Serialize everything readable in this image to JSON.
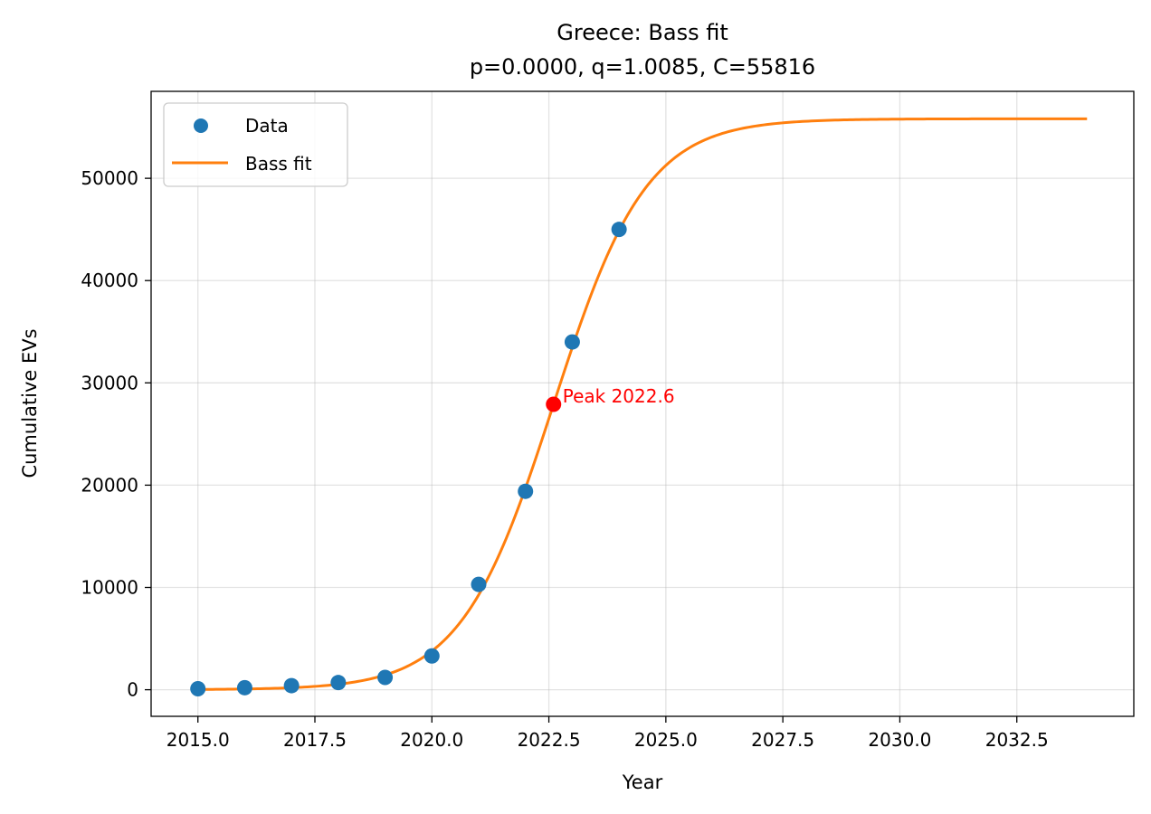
{
  "chart_data": {
    "type": "line",
    "title": "Greece: Bass fit",
    "subtitle": "p=0.0000, q=1.0085, C=55816",
    "xlabel": "Year",
    "ylabel": "Cumulative EVs",
    "xlim": [
      2014.0,
      2035.0
    ],
    "ylim": [
      -2600,
      58500
    ],
    "xticks": [
      2015.0,
      2017.5,
      2020.0,
      2022.5,
      2025.0,
      2027.5,
      2030.0,
      2032.5
    ],
    "xtick_labels": [
      "2015.0",
      "2017.5",
      "2020.0",
      "2022.5",
      "2025.0",
      "2027.5",
      "2030.0",
      "2032.5"
    ],
    "yticks": [
      0,
      10000,
      20000,
      30000,
      40000,
      50000
    ],
    "ytick_labels": [
      "0",
      "10000",
      "20000",
      "30000",
      "40000",
      "50000"
    ],
    "grid": true,
    "legend_position": "top-left",
    "series": [
      {
        "name": "Data",
        "kind": "scatter",
        "color": "#1f77b4",
        "x": [
          2015,
          2016,
          2017,
          2018,
          2019,
          2020,
          2021,
          2022,
          2023,
          2024
        ],
        "y": [
          100,
          200,
          400,
          700,
          1200,
          3300,
          10300,
          19400,
          34000,
          45000
        ]
      },
      {
        "name": "Bass fit",
        "kind": "line",
        "color": "#ff7f0e",
        "x_start": 2015.0,
        "x_end": 2034.0,
        "peak": 2022.6,
        "q": 1.0085,
        "C": 55816
      }
    ],
    "annotation": {
      "text": "Peak 2022.6",
      "x": 2022.6,
      "y": 27908,
      "color": "#ff0000"
    }
  }
}
